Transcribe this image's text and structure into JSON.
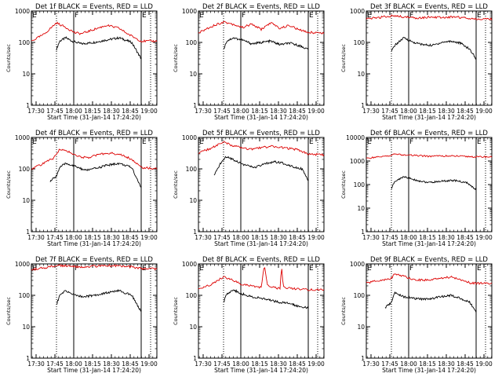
{
  "chart_data": [
    {
      "type": "line",
      "title": "Det 1f BLACK = Events, RED = LLD",
      "xlabel": "Start Time (31-Jan-14 17:24:20)",
      "ylabel": "Counts/sec",
      "yscale": "log",
      "ylim": [
        1,
        1000
      ],
      "yticks": [
        "1",
        "10",
        "100",
        "1000"
      ],
      "xticks": [
        "17:30",
        "17:45",
        "18:00",
        "18:15",
        "18:30",
        "18:45",
        "19:00"
      ],
      "xlim": [
        0,
        40
      ],
      "markers": [
        {
          "label": "E",
          "x": 0,
          "style": "dotted"
        },
        {
          "label": "",
          "x": 8,
          "style": "dotted"
        },
        {
          "label": "F",
          "x": 13.5,
          "style": "solid"
        },
        {
          "label": "E",
          "x": 35,
          "style": "solid"
        },
        {
          "label": "",
          "x": 38,
          "style": "dotted"
        }
      ],
      "series": [
        {
          "color": "#000000",
          "x": [
            8,
            9,
            11,
            13,
            16,
            20,
            24,
            28,
            32,
            35
          ],
          "y": [
            60,
            110,
            140,
            110,
            90,
            100,
            120,
            140,
            100,
            30
          ]
        },
        {
          "color": "#dd0000",
          "x": [
            0,
            4,
            8,
            11,
            14,
            16,
            20,
            24,
            28,
            31,
            35,
            40
          ],
          "y": [
            110,
            180,
            420,
            300,
            200,
            190,
            260,
            350,
            280,
            180,
            110,
            110
          ]
        }
      ]
    },
    {
      "type": "line",
      "title": "Det 2f BLACK = Events, RED = LLD",
      "xlabel": "Start Time (31-Jan-14 17:24:20)",
      "ylabel": "Counts/sec",
      "yscale": "log",
      "ylim": [
        1,
        1000
      ],
      "yticks": [
        "1",
        "10",
        "100",
        "1000"
      ],
      "xticks": [
        "17:30",
        "17:45",
        "18:00",
        "18:15",
        "18:30",
        "18:45",
        "19:00"
      ],
      "xlim": [
        0,
        40
      ],
      "markers": [
        {
          "label": "E",
          "x": 0,
          "style": "dotted"
        },
        {
          "label": "",
          "x": 8,
          "style": "dotted"
        },
        {
          "label": "F",
          "x": 13.5,
          "style": "solid"
        },
        {
          "label": "E",
          "x": 35,
          "style": "solid"
        },
        {
          "label": "",
          "x": 38,
          "style": "dotted"
        }
      ],
      "series": [
        {
          "color": "#000000",
          "x": [
            8,
            9,
            11,
            14,
            17,
            20,
            23,
            26,
            29,
            32,
            35
          ],
          "y": [
            60,
            110,
            140,
            120,
            90,
            100,
            110,
            85,
            95,
            80,
            60
          ]
        },
        {
          "color": "#dd0000",
          "x": [
            0,
            4,
            8,
            11,
            14,
            17,
            20,
            23,
            26,
            29,
            32,
            35,
            40
          ],
          "y": [
            200,
            320,
            450,
            380,
            300,
            380,
            260,
            420,
            280,
            350,
            250,
            210,
            200
          ]
        }
      ]
    },
    {
      "type": "line",
      "title": "Det 3f BLACK = Events, RED = LLD",
      "xlabel": "Start Time (31-Jan-14 17:24:20)",
      "ylabel": "Counts/sec",
      "yscale": "log",
      "ylim": [
        1,
        1000
      ],
      "yticks": [
        "1",
        "10",
        "100",
        "1000"
      ],
      "xticks": [
        "17:30",
        "17:45",
        "18:00",
        "18:15",
        "18:30",
        "18:45",
        "19:00"
      ],
      "xlim": [
        0,
        40
      ],
      "markers": [
        {
          "label": "E",
          "x": 0,
          "style": "dotted"
        },
        {
          "label": "",
          "x": 8,
          "style": "dotted"
        },
        {
          "label": "F",
          "x": 13.5,
          "style": "solid"
        },
        {
          "label": "E",
          "x": 35,
          "style": "solid"
        },
        {
          "label": "",
          "x": 38,
          "style": "dotted"
        }
      ],
      "series": [
        {
          "color": "#000000",
          "x": [
            8,
            9,
            12,
            15,
            18,
            21,
            24,
            27,
            30,
            33,
            35
          ],
          "y": [
            50,
            80,
            140,
            100,
            85,
            80,
            100,
            110,
            95,
            60,
            30
          ]
        },
        {
          "color": "#dd0000",
          "x": [
            0,
            4,
            8,
            12,
            16,
            20,
            24,
            28,
            32,
            35,
            40
          ],
          "y": [
            550,
            620,
            700,
            650,
            600,
            640,
            620,
            650,
            600,
            560,
            550
          ]
        }
      ]
    },
    {
      "type": "line",
      "title": "Det 4f BLACK = Events, RED = LLD",
      "xlabel": "Start Time (31-Jan-14 17:24:20)",
      "ylabel": "Counts/sec",
      "yscale": "log",
      "ylim": [
        1,
        1000
      ],
      "yticks": [
        "1",
        "10",
        "100",
        "1000"
      ],
      "xticks": [
        "17:30",
        "17:45",
        "18:00",
        "18:15",
        "18:30",
        "18:45",
        "19:00"
      ],
      "xlim": [
        0,
        40
      ],
      "markers": [
        {
          "label": "E",
          "x": 0,
          "style": "dotted"
        },
        {
          "label": "",
          "x": 8,
          "style": "dotted"
        },
        {
          "label": "F",
          "x": 13.5,
          "style": "solid"
        },
        {
          "label": "E",
          "x": 35,
          "style": "solid"
        },
        {
          "label": "",
          "x": 38,
          "style": "dotted"
        }
      ],
      "series": [
        {
          "color": "#000000",
          "x": [
            6,
            8,
            9,
            11,
            14,
            17,
            20,
            24,
            28,
            32,
            35
          ],
          "y": [
            40,
            60,
            110,
            150,
            120,
            90,
            100,
            130,
            150,
            110,
            25
          ]
        },
        {
          "color": "#dd0000",
          "x": [
            0,
            4,
            7,
            9,
            12,
            15,
            18,
            21,
            24,
            28,
            32,
            35,
            40
          ],
          "y": [
            100,
            150,
            220,
            420,
            350,
            250,
            220,
            280,
            320,
            300,
            200,
            110,
            100
          ]
        }
      ]
    },
    {
      "type": "line",
      "title": "Det 5f BLACK = Events, RED = LLD",
      "xlabel": "Start Time (31-Jan-14 17:24:20)",
      "ylabel": "Counts/sec",
      "yscale": "log",
      "ylim": [
        1,
        1000
      ],
      "yticks": [
        "1",
        "10",
        "100",
        "1000"
      ],
      "xticks": [
        "17:30",
        "17:45",
        "18:00",
        "18:15",
        "18:30",
        "18:45",
        "19:00"
      ],
      "xlim": [
        0,
        40
      ],
      "markers": [
        {
          "label": "E",
          "x": 0,
          "style": "dotted"
        },
        {
          "label": "",
          "x": 8,
          "style": "dotted"
        },
        {
          "label": "F",
          "x": 13.5,
          "style": "solid"
        },
        {
          "label": "E",
          "x": 35,
          "style": "solid"
        },
        {
          "label": "",
          "x": 38,
          "style": "dotted"
        }
      ],
      "series": [
        {
          "color": "#000000",
          "x": [
            5,
            7,
            9,
            12,
            15,
            18,
            21,
            24,
            27,
            30,
            33,
            35
          ],
          "y": [
            60,
            150,
            250,
            180,
            130,
            110,
            140,
            170,
            150,
            120,
            100,
            40
          ]
        },
        {
          "color": "#dd0000",
          "x": [
            0,
            4,
            8,
            11,
            14,
            17,
            20,
            24,
            28,
            32,
            35,
            40
          ],
          "y": [
            320,
            450,
            700,
            550,
            450,
            420,
            480,
            520,
            460,
            400,
            300,
            280
          ]
        }
      ]
    },
    {
      "type": "line",
      "title": "Det 6f BLACK = Events, RED = LLD",
      "xlabel": "Start Time (31-Jan-14 17:24:20)",
      "ylabel": "Counts/sec",
      "yscale": "log",
      "ylim": [
        1,
        10000
      ],
      "yticks": [
        "1",
        "10",
        "100",
        "1000",
        "10000"
      ],
      "xticks": [
        "17:30",
        "17:45",
        "18:00",
        "18:15",
        "18:30",
        "18:45",
        "19:00"
      ],
      "xlim": [
        0,
        40
      ],
      "markers": [
        {
          "label": "E",
          "x": 0,
          "style": "dotted"
        },
        {
          "label": "",
          "x": 8,
          "style": "dotted"
        },
        {
          "label": "F",
          "x": 13.5,
          "style": "solid"
        },
        {
          "label": "E",
          "x": 35,
          "style": "solid"
        },
        {
          "label": "",
          "x": 38,
          "style": "dotted"
        }
      ],
      "series": [
        {
          "color": "#000000",
          "x": [
            8,
            9,
            12,
            16,
            20,
            24,
            28,
            32,
            35
          ],
          "y": [
            70,
            130,
            220,
            150,
            120,
            140,
            150,
            120,
            60
          ]
        },
        {
          "color": "#dd0000",
          "x": [
            0,
            4,
            8,
            9,
            12,
            16,
            20,
            24,
            28,
            32,
            35,
            40
          ],
          "y": [
            1300,
            1500,
            1700,
            2000,
            1800,
            1700,
            1600,
            1650,
            1600,
            1550,
            1500,
            1500
          ]
        }
      ]
    },
    {
      "type": "line",
      "title": "Det 7f BLACK = Events, RED = LLD",
      "xlabel": "Start Time (31-Jan-14 17:24:20)",
      "ylabel": "Counts/sec",
      "yscale": "log",
      "ylim": [
        1,
        1000
      ],
      "yticks": [
        "1",
        "10",
        "100",
        "1000"
      ],
      "xticks": [
        "17:30",
        "17:45",
        "18:00",
        "18:15",
        "18:30",
        "18:45",
        "19:00"
      ],
      "xlim": [
        0,
        40
      ],
      "markers": [
        {
          "label": "E",
          "x": 0,
          "style": "dotted"
        },
        {
          "label": "",
          "x": 8,
          "style": "dotted"
        },
        {
          "label": "F",
          "x": 13.5,
          "style": "solid"
        },
        {
          "label": "E",
          "x": 35,
          "style": "solid"
        },
        {
          "label": "",
          "x": 38,
          "style": "dotted"
        }
      ],
      "series": [
        {
          "color": "#000000",
          "x": [
            8,
            9,
            11,
            14,
            17,
            20,
            24,
            28,
            32,
            35
          ],
          "y": [
            50,
            100,
            140,
            100,
            90,
            100,
            120,
            140,
            100,
            30
          ]
        },
        {
          "color": "#dd0000",
          "x": [
            0,
            4,
            8,
            12,
            16,
            20,
            24,
            28,
            32,
            35,
            40
          ],
          "y": [
            650,
            750,
            900,
            850,
            800,
            850,
            900,
            850,
            800,
            700,
            700
          ]
        }
      ]
    },
    {
      "type": "line",
      "title": "Det 8f BLACK = Events, RED = LLD",
      "xlabel": "Start Time (31-Jan-14 17:24:20)",
      "ylabel": "Counts/sec",
      "yscale": "log",
      "ylim": [
        1,
        1000
      ],
      "yticks": [
        "1",
        "10",
        "100",
        "1000"
      ],
      "xticks": [
        "17:30",
        "17:45",
        "18:00",
        "18:15",
        "18:30",
        "18:45",
        "19:00"
      ],
      "xlim": [
        0,
        40
      ],
      "markers": [
        {
          "label": "E",
          "x": 0,
          "style": "dotted"
        },
        {
          "label": "",
          "x": 8,
          "style": "dotted"
        },
        {
          "label": "F",
          "x": 13.5,
          "style": "solid"
        },
        {
          "label": "E",
          "x": 35,
          "style": "solid"
        },
        {
          "label": "",
          "x": 38,
          "style": "dotted"
        }
      ],
      "series": [
        {
          "color": "#000000",
          "x": [
            8,
            9,
            11,
            14,
            17,
            20,
            23,
            26,
            29,
            32,
            35
          ],
          "y": [
            60,
            110,
            150,
            110,
            90,
            80,
            70,
            60,
            55,
            45,
            40
          ]
        },
        {
          "color": "#dd0000",
          "x": [
            0,
            4,
            8,
            11,
            14,
            17,
            20,
            21,
            22,
            24,
            26,
            26.5,
            27,
            29,
            32,
            35,
            40
          ],
          "y": [
            150,
            220,
            380,
            300,
            220,
            200,
            180,
            900,
            200,
            180,
            160,
            900,
            180,
            170,
            160,
            150,
            150
          ]
        }
      ]
    },
    {
      "type": "line",
      "title": "Det 9f BLACK = Events, RED = LLD",
      "xlabel": "Start Time (31-Jan-14 17:24:20)",
      "ylabel": "Counts/sec",
      "yscale": "log",
      "ylim": [
        1,
        1000
      ],
      "yticks": [
        "1",
        "10",
        "100",
        "1000"
      ],
      "xticks": [
        "17:30",
        "17:45",
        "18:00",
        "18:15",
        "18:30",
        "18:45",
        "19:00"
      ],
      "xlim": [
        0,
        40
      ],
      "markers": [
        {
          "label": "E",
          "x": 0,
          "style": "dotted"
        },
        {
          "label": "",
          "x": 8,
          "style": "dotted"
        },
        {
          "label": "F",
          "x": 13.5,
          "style": "solid"
        },
        {
          "label": "E",
          "x": 35,
          "style": "solid"
        },
        {
          "label": "",
          "x": 38,
          "style": "dotted"
        }
      ],
      "series": [
        {
          "color": "#000000",
          "x": [
            6,
            8,
            9,
            12,
            15,
            18,
            21,
            24,
            27,
            30,
            33,
            35
          ],
          "y": [
            40,
            60,
            120,
            90,
            80,
            75,
            80,
            90,
            100,
            80,
            60,
            30
          ]
        },
        {
          "color": "#dd0000",
          "x": [
            0,
            4,
            8,
            9,
            12,
            15,
            18,
            21,
            24,
            27,
            30,
            33,
            35,
            40
          ],
          "y": [
            250,
            300,
            350,
            500,
            400,
            330,
            300,
            320,
            350,
            380,
            320,
            250,
            240,
            240
          ]
        }
      ]
    }
  ]
}
